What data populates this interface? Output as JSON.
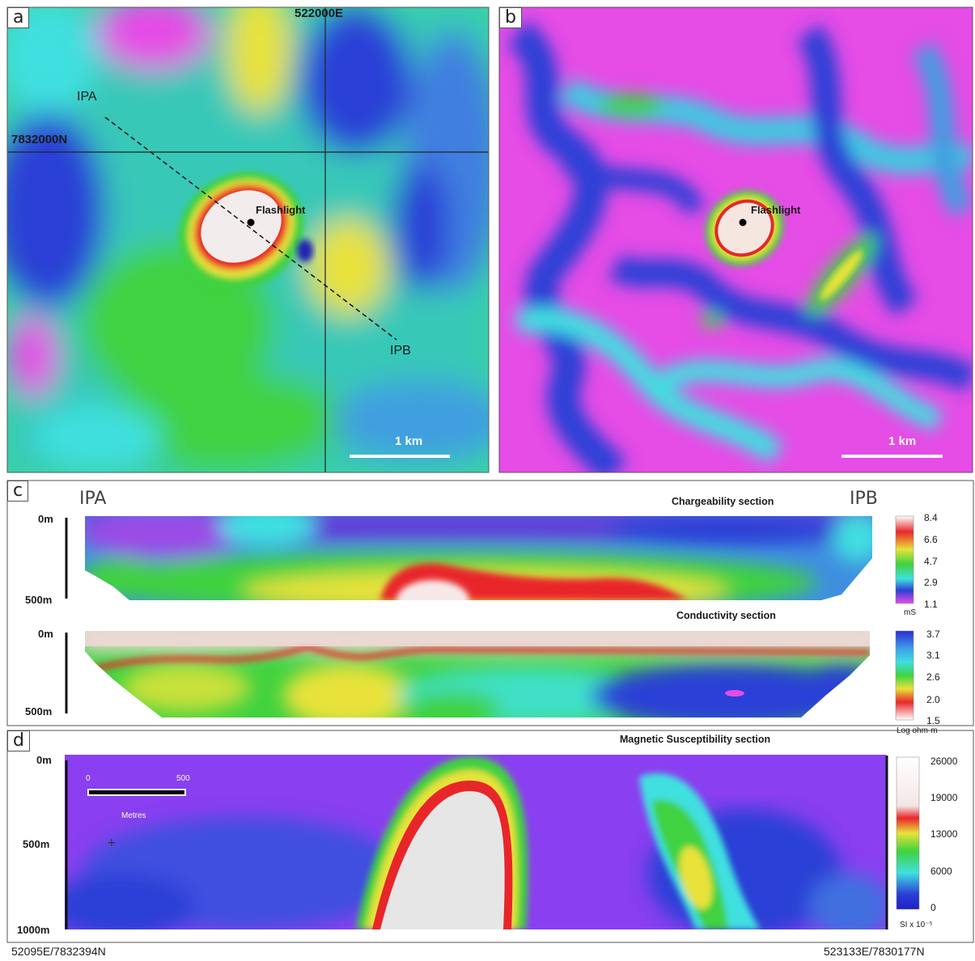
{
  "panels": {
    "a": {
      "tag": "a",
      "easting_label": "522000E",
      "northing_label": "7832000N",
      "profile_start": "IPA",
      "profile_end": "IPB",
      "target_label": "Flashlight",
      "scale_label": "1 km"
    },
    "b": {
      "tag": "b",
      "target_label": "Flashlight",
      "scale_label": "1 km"
    },
    "c": {
      "tag": "c",
      "profile_start": "IPA",
      "profile_end": "IPB",
      "chargeability": {
        "title": "Chargeability section",
        "depth_top": "0m",
        "depth_bottom": "500m",
        "colorbar_ticks": [
          "8.4",
          "6.6",
          "4.7",
          "2.9",
          "1.1"
        ],
        "colorbar_unit": "mS"
      },
      "conductivity": {
        "title": "Conductivity section",
        "depth_top": "0m",
        "depth_bottom": "500m",
        "colorbar_ticks": [
          "3.7",
          "3.1",
          "2.6",
          "2.0",
          "1.5"
        ],
        "colorbar_unit": "Log ohm-m"
      }
    },
    "d": {
      "tag": "d",
      "magnetic": {
        "title": "Magnetic Susceptibility section",
        "depth_top": "0m",
        "depth_mid": "500m",
        "depth_bottom": "1000m",
        "colorbar_ticks": [
          "26000",
          "19000",
          "13000",
          "6000",
          "0"
        ],
        "colorbar_unit": "SI x 10⁻⁵"
      },
      "scalebar": {
        "start": "0",
        "end": "500",
        "unit": "Metres"
      },
      "coord_start": "52095E/7832394N",
      "coord_end": "523133E/7830177N"
    }
  },
  "colors": {
    "magenta": "#e64ce6",
    "blue": "#2b3fd6",
    "cyan": "#3fe0e0",
    "green": "#3fd23f",
    "yellow": "#e8e23a",
    "red": "#e8262a",
    "white": "#f2ecec"
  }
}
